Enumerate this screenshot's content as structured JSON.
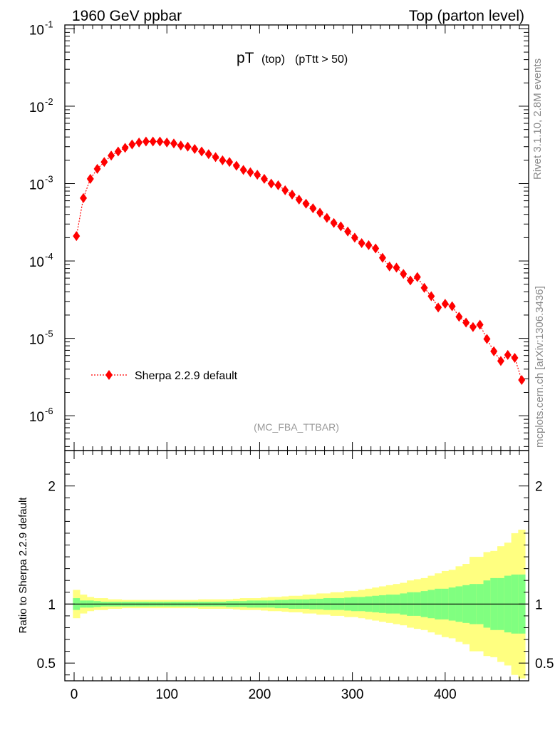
{
  "header": {
    "left": "1960 GeV ppbar",
    "right": "Top (parton level)"
  },
  "title": {
    "main": "pT",
    "sub1": "(top)",
    "sub2": "(pTtt > 50)"
  },
  "watermark": "(MC_FBA_TTBAR)",
  "side_labels": {
    "rivet": "Rivet 3.1.10,  2.8M events",
    "site": "mcplots.cern.ch [arXiv:1306.3436]"
  },
  "colors": {
    "series": "#ff0000",
    "band_outer": "#ffff80",
    "band_inner": "#80ff80"
  },
  "chart_data": {
    "type": "line",
    "log_y": true,
    "xlim": [
      -10,
      490
    ],
    "ylim_exp": [
      -6.45,
      -0.95
    ],
    "y_tick_labels": [
      "10",
      "10",
      "10",
      "10",
      "10",
      "10"
    ],
    "y_tick_exps": [
      "-1",
      "-2",
      "-3",
      "-4",
      "-5",
      "-6"
    ],
    "series": [
      {
        "name": "Sherpa 2.2.9 default",
        "x": [
          2.5,
          10,
          17.5,
          25,
          32.5,
          40,
          47.5,
          55,
          62.5,
          70,
          77.5,
          85,
          92.5,
          100,
          107.5,
          115,
          122.5,
          130,
          137.5,
          145,
          152.5,
          160,
          167.5,
          175,
          182.5,
          190,
          197.5,
          205,
          212.5,
          220,
          227.5,
          235,
          242.5,
          250,
          257.5,
          265,
          272.5,
          280,
          287.5,
          295,
          302.5,
          310,
          317.5,
          325,
          332.5,
          340,
          347.5,
          355,
          362.5,
          370,
          377.5,
          385,
          392.5,
          400,
          407.5,
          415,
          422.5,
          430,
          437.5,
          445,
          452.5,
          460,
          467.5,
          475,
          482.5
        ],
        "y": [
          0.00021,
          0.00065,
          0.00115,
          0.00155,
          0.0019,
          0.0023,
          0.0026,
          0.0029,
          0.0032,
          0.0034,
          0.0035,
          0.0035,
          0.0035,
          0.0034,
          0.0033,
          0.0031,
          0.003,
          0.0028,
          0.0026,
          0.0024,
          0.0022,
          0.002,
          0.0019,
          0.0017,
          0.0015,
          0.0014,
          0.0013,
          0.00115,
          0.001,
          0.00095,
          0.00082,
          0.00072,
          0.00062,
          0.00055,
          0.00048,
          0.00042,
          0.00036,
          0.00031,
          0.00028,
          0.00024,
          0.0002,
          0.00017,
          0.00016,
          0.000145,
          0.00011,
          8.5e-05,
          8.2e-05,
          6.8e-05,
          5.6e-05,
          6.2e-05,
          4.5e-05,
          3.5e-05,
          2.5e-05,
          2.8e-05,
          2.6e-05,
          1.9e-05,
          1.6e-05,
          1.4e-05,
          1.5e-05,
          9.8e-06,
          6.8e-06,
          5.1e-06,
          6.1e-06,
          5.6e-06,
          2.9e-06
        ]
      }
    ],
    "ratio": {
      "ylabel": "Ratio to Sherpa 2.2.9 default",
      "ylim": [
        0.35,
        2.3
      ],
      "yticks": [
        0.5,
        1,
        2
      ],
      "ytick_labels": [
        "0.5",
        "1",
        "2"
      ],
      "xticks": [
        0,
        100,
        200,
        300,
        400
      ],
      "xtick_labels": [
        "0",
        "100",
        "200",
        "300",
        "400"
      ],
      "band_inner_halfwidth": [
        0.05,
        0.03,
        0.03,
        0.025,
        0.02,
        0.02,
        0.02,
        0.02,
        0.02,
        0.02,
        0.02,
        0.02,
        0.02,
        0.02,
        0.02,
        0.02,
        0.02,
        0.02,
        0.02,
        0.02,
        0.02,
        0.02,
        0.025,
        0.025,
        0.025,
        0.03,
        0.03,
        0.03,
        0.03,
        0.035,
        0.035,
        0.04,
        0.04,
        0.04,
        0.045,
        0.045,
        0.05,
        0.05,
        0.05,
        0.055,
        0.06,
        0.06,
        0.065,
        0.07,
        0.075,
        0.08,
        0.08,
        0.09,
        0.1,
        0.1,
        0.11,
        0.12,
        0.13,
        0.13,
        0.14,
        0.15,
        0.16,
        0.17,
        0.17,
        0.2,
        0.22,
        0.22,
        0.24,
        0.25,
        0.25
      ],
      "band_outer_halfwidth": [
        0.12,
        0.08,
        0.06,
        0.05,
        0.05,
        0.04,
        0.04,
        0.035,
        0.035,
        0.035,
        0.035,
        0.035,
        0.035,
        0.035,
        0.035,
        0.035,
        0.035,
        0.035,
        0.04,
        0.04,
        0.04,
        0.04,
        0.04,
        0.045,
        0.05,
        0.05,
        0.05,
        0.055,
        0.06,
        0.06,
        0.065,
        0.07,
        0.07,
        0.08,
        0.08,
        0.09,
        0.09,
        0.1,
        0.1,
        0.11,
        0.11,
        0.12,
        0.13,
        0.14,
        0.15,
        0.16,
        0.17,
        0.18,
        0.2,
        0.21,
        0.22,
        0.24,
        0.26,
        0.28,
        0.29,
        0.32,
        0.34,
        0.4,
        0.4,
        0.44,
        0.45,
        0.49,
        0.52,
        0.6,
        0.63
      ]
    }
  }
}
